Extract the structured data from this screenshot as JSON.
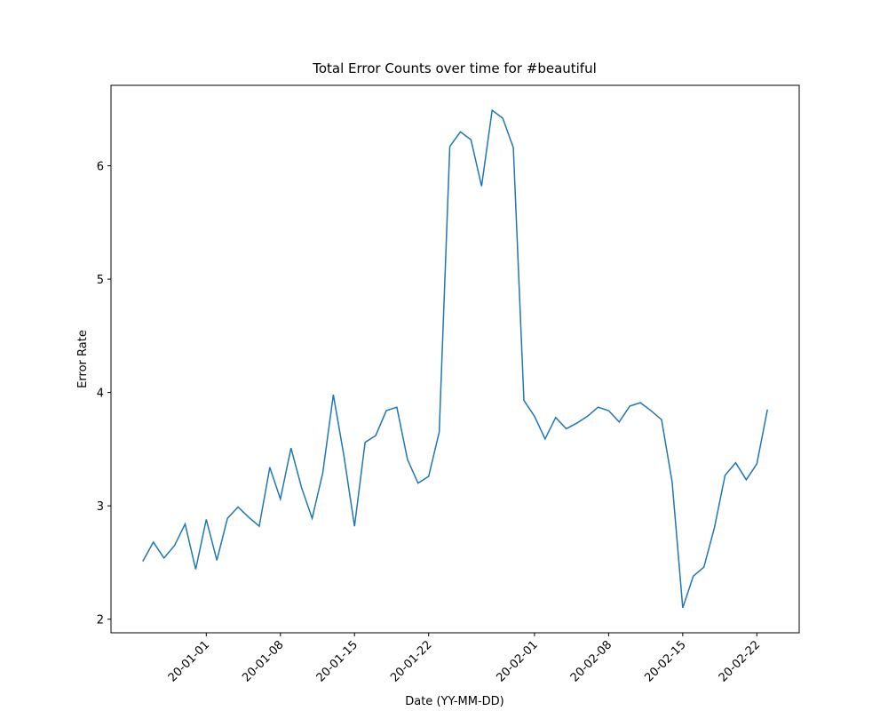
{
  "chart_data": {
    "type": "line",
    "title": "Total Error Counts over time for #beautiful",
    "x_label": "Date (YY-MM-DD)",
    "y_label": "Error Rate",
    "x": [
      "19-12-26",
      "19-12-27",
      "19-12-28",
      "19-12-29",
      "19-12-30",
      "19-12-31",
      "20-01-01",
      "20-01-02",
      "20-01-03",
      "20-01-04",
      "20-01-05",
      "20-01-06",
      "20-01-07",
      "20-01-08",
      "20-01-09",
      "20-01-10",
      "20-01-11",
      "20-01-12",
      "20-01-13",
      "20-01-14",
      "20-01-15",
      "20-01-16",
      "20-01-17",
      "20-01-18",
      "20-01-19",
      "20-01-20",
      "20-01-21",
      "20-01-22",
      "20-01-23",
      "20-01-24",
      "20-01-25",
      "20-01-26",
      "20-01-27",
      "20-01-28",
      "20-01-29",
      "20-01-30",
      "20-01-31",
      "20-02-01",
      "20-02-02",
      "20-02-03",
      "20-02-04",
      "20-02-05",
      "20-02-06",
      "20-02-07",
      "20-02-08",
      "20-02-09",
      "20-02-10",
      "20-02-11",
      "20-02-12",
      "20-02-13",
      "20-02-14",
      "20-02-15",
      "20-02-16",
      "20-02-17",
      "20-02-18",
      "20-02-19",
      "20-02-20",
      "20-02-21",
      "20-02-22",
      "20-02-23"
    ],
    "series": [
      {
        "color": "#1f77b4",
        "values": [
          2.51,
          2.68,
          2.54,
          2.65,
          2.84,
          2.44,
          2.88,
          2.52,
          2.89,
          2.99,
          2.9,
          2.82,
          3.34,
          3.06,
          3.51,
          3.16,
          2.89,
          3.29,
          3.98,
          3.44,
          2.82,
          3.56,
          3.62,
          3.84,
          3.87,
          3.41,
          3.2,
          3.26,
          3.65,
          6.17,
          6.3,
          6.23,
          5.82,
          6.49,
          6.42,
          6.16,
          3.93,
          3.79,
          3.59,
          3.78,
          3.68,
          3.73,
          3.79,
          3.87,
          3.84,
          3.74,
          3.88,
          3.91,
          3.84,
          3.76,
          3.21,
          2.1,
          2.38,
          2.46,
          2.81,
          3.27,
          3.38,
          3.23,
          3.37,
          3.85
        ]
      }
    ],
    "xlim": [
      "19-12-23",
      "20-02-26"
    ],
    "xticks": [
      "20-01-01",
      "20-01-08",
      "20-01-15",
      "20-01-22",
      "20-02-01",
      "20-02-08",
      "20-02-15",
      "20-02-22"
    ],
    "ylim": [
      1.88,
      6.71
    ],
    "yticks": [
      2,
      3,
      4,
      5,
      6
    ]
  }
}
